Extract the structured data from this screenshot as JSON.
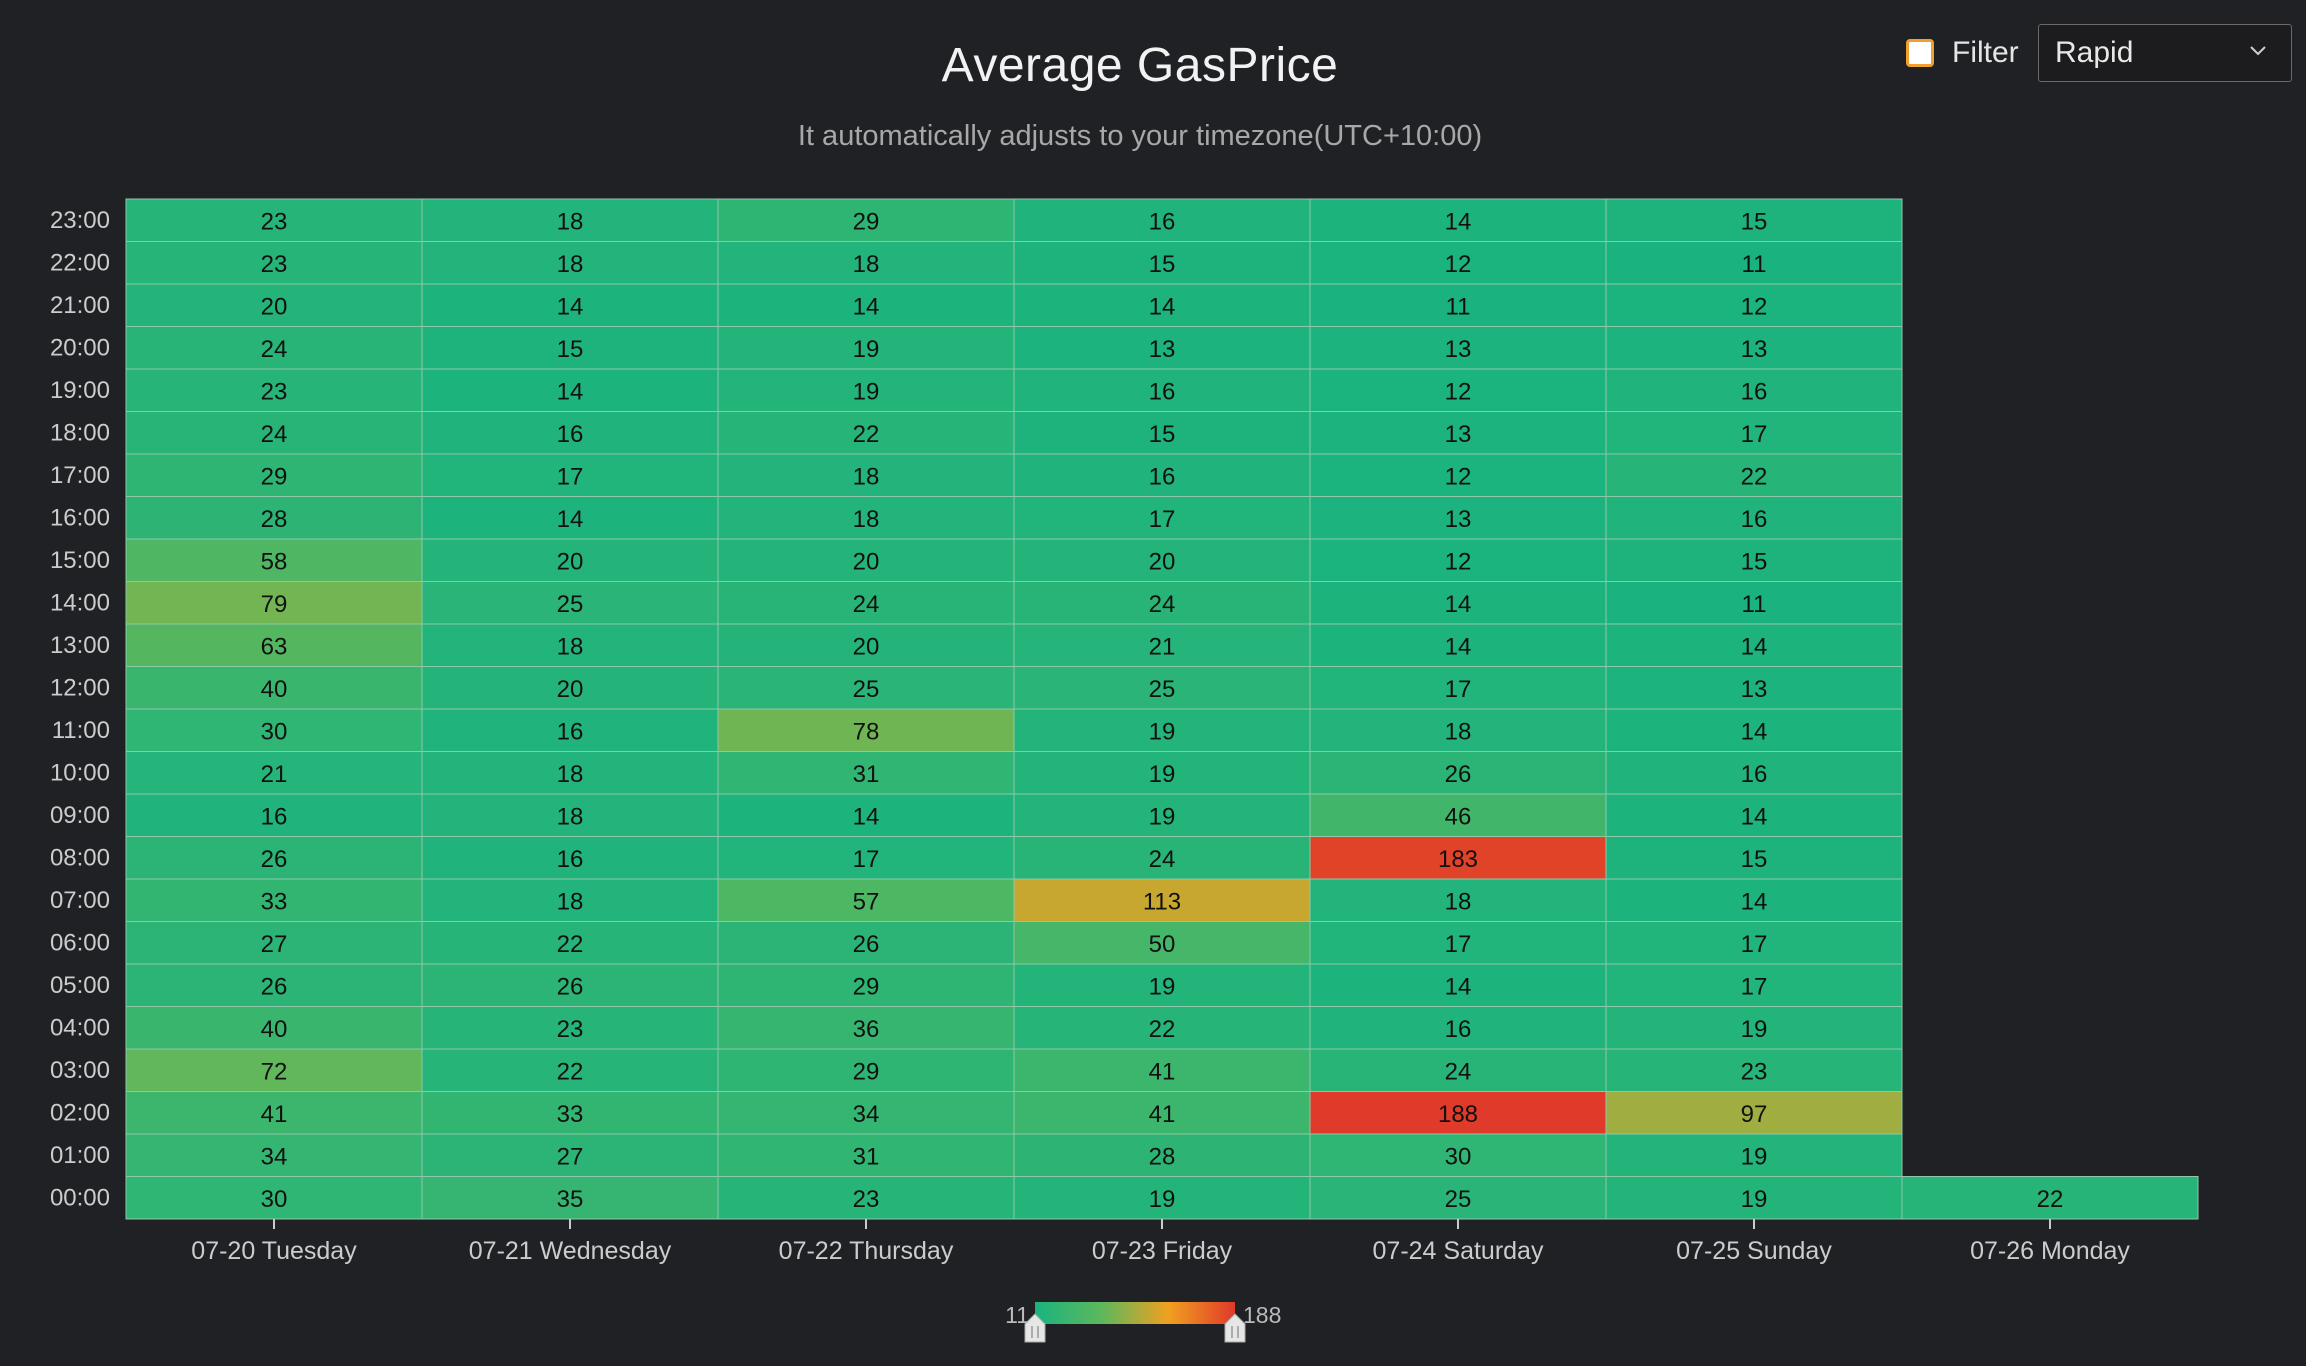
{
  "chart_data": {
    "type": "heatmap",
    "title": "Average GasPrice",
    "subtitle": "It automatically adjusts to your timezone(UTC+10:00)",
    "x_categories": [
      "07-20 Tuesday",
      "07-21 Wednesday",
      "07-22 Thursday",
      "07-23 Friday",
      "07-24 Saturday",
      "07-25 Sunday",
      "07-26 Monday"
    ],
    "y_categories": [
      "00:00",
      "01:00",
      "02:00",
      "03:00",
      "04:00",
      "05:00",
      "06:00",
      "07:00",
      "08:00",
      "09:00",
      "10:00",
      "11:00",
      "12:00",
      "13:00",
      "14:00",
      "15:00",
      "16:00",
      "17:00",
      "18:00",
      "19:00",
      "20:00",
      "21:00",
      "22:00",
      "23:00"
    ],
    "values": [
      [
        30,
        34,
        41,
        72,
        40,
        26,
        27,
        33,
        26,
        16,
        21,
        30,
        40,
        63,
        79,
        58,
        28,
        29,
        24,
        23,
        24,
        20,
        23,
        23
      ],
      [
        35,
        27,
        33,
        22,
        23,
        26,
        22,
        18,
        16,
        18,
        18,
        16,
        20,
        18,
        25,
        20,
        14,
        17,
        16,
        14,
        15,
        14,
        18,
        18
      ],
      [
        23,
        31,
        34,
        29,
        36,
        29,
        26,
        57,
        17,
        14,
        31,
        78,
        25,
        20,
        24,
        20,
        18,
        18,
        22,
        19,
        19,
        14,
        18,
        29
      ],
      [
        19,
        28,
        41,
        41,
        22,
        19,
        50,
        113,
        24,
        19,
        19,
        19,
        25,
        21,
        24,
        20,
        17,
        16,
        15,
        16,
        13,
        14,
        15,
        16
      ],
      [
        25,
        30,
        188,
        24,
        16,
        14,
        17,
        18,
        183,
        46,
        26,
        18,
        17,
        14,
        14,
        12,
        13,
        12,
        13,
        12,
        13,
        11,
        12,
        14
      ],
      [
        19,
        19,
        97,
        23,
        19,
        17,
        17,
        14,
        15,
        14,
        16,
        14,
        13,
        14,
        11,
        15,
        16,
        22,
        17,
        16,
        13,
        12,
        11,
        15
      ],
      [
        22,
        null,
        null,
        null,
        null,
        null,
        null,
        null,
        null,
        null,
        null,
        null,
        null,
        null,
        null,
        null,
        null,
        null,
        null,
        null,
        null,
        null,
        null,
        null
      ]
    ],
    "visual_map": {
      "min": 11,
      "max": 188,
      "colors": [
        "#1ab37f",
        "#5cb85c",
        "#f0a020",
        "#e03a2a"
      ]
    },
    "colors": {
      "background": "#202124",
      "cell_border": "#8fc8a8",
      "axis_text": "#cccccc"
    }
  },
  "controls": {
    "filter_label": "Filter",
    "filter_checked": false,
    "speed_selected": "Rapid"
  }
}
